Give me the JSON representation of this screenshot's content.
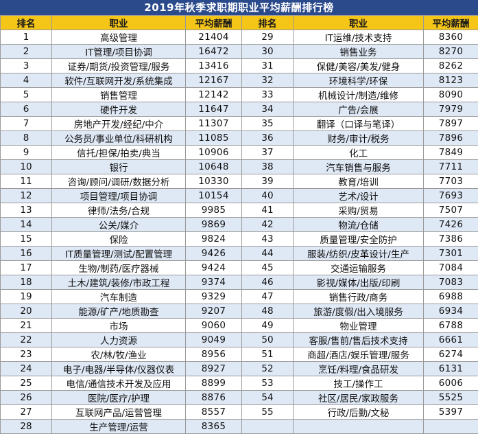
{
  "title": "2019年秋季求职期职业平均薪酬排行榜",
  "headers": {
    "rank": "排名",
    "job": "职业",
    "salary": "平均薪酬"
  },
  "left": [
    {
      "rank": "1",
      "job": "高级管理",
      "salary": "21404"
    },
    {
      "rank": "2",
      "job": "IT管理/项目协调",
      "salary": "16472"
    },
    {
      "rank": "3",
      "job": "证券/期货/投资管理/服务",
      "salary": "13416"
    },
    {
      "rank": "4",
      "job": "软件/互联网开发/系统集成",
      "salary": "12167"
    },
    {
      "rank": "5",
      "job": "销售管理",
      "salary": "12142"
    },
    {
      "rank": "6",
      "job": "硬件开发",
      "salary": "11647"
    },
    {
      "rank": "7",
      "job": "房地产开发/经纪/中介",
      "salary": "11307"
    },
    {
      "rank": "8",
      "job": "公务员/事业单位/科研机构",
      "salary": "11085"
    },
    {
      "rank": "9",
      "job": "信托/担保/拍卖/典当",
      "salary": "10906"
    },
    {
      "rank": "10",
      "job": "银行",
      "salary": "10648"
    },
    {
      "rank": "11",
      "job": "咨询/顾问/调研/数据分析",
      "salary": "10330"
    },
    {
      "rank": "12",
      "job": "项目管理/项目协调",
      "salary": "10154"
    },
    {
      "rank": "13",
      "job": "律师/法务/合规",
      "salary": "9985"
    },
    {
      "rank": "14",
      "job": "公关/媒介",
      "salary": "9869"
    },
    {
      "rank": "15",
      "job": "保险",
      "salary": "9824"
    },
    {
      "rank": "16",
      "job": "IT质量管理/测试/配置管理",
      "salary": "9426"
    },
    {
      "rank": "17",
      "job": "生物/制药/医疗器械",
      "salary": "9424"
    },
    {
      "rank": "18",
      "job": "土木/建筑/装修/市政工程",
      "salary": "9374"
    },
    {
      "rank": "19",
      "job": "汽车制造",
      "salary": "9329"
    },
    {
      "rank": "20",
      "job": "能源/矿产/地质勘查",
      "salary": "9207"
    },
    {
      "rank": "21",
      "job": "市场",
      "salary": "9060"
    },
    {
      "rank": "22",
      "job": "人力资源",
      "salary": "9049"
    },
    {
      "rank": "23",
      "job": "农/林/牧/渔业",
      "salary": "8956"
    },
    {
      "rank": "24",
      "job": "电子/电器/半导体/仪器仪表",
      "salary": "8927"
    },
    {
      "rank": "25",
      "job": "电信/通信技术开发及应用",
      "salary": "8899"
    },
    {
      "rank": "26",
      "job": "医院/医疗/护理",
      "salary": "8876"
    },
    {
      "rank": "27",
      "job": "互联网产品/运营管理",
      "salary": "8557"
    },
    {
      "rank": "28",
      "job": "生产管理/运营",
      "salary": "8365"
    }
  ],
  "right": [
    {
      "rank": "29",
      "job": "IT运维/技术支持",
      "salary": "8360"
    },
    {
      "rank": "30",
      "job": "销售业务",
      "salary": "8270"
    },
    {
      "rank": "31",
      "job": "保健/美容/美发/健身",
      "salary": "8262"
    },
    {
      "rank": "32",
      "job": "环境科学/环保",
      "salary": "8123"
    },
    {
      "rank": "33",
      "job": "机械设计/制造/维修",
      "salary": "8090"
    },
    {
      "rank": "34",
      "job": "广告/会展",
      "salary": "7979"
    },
    {
      "rank": "35",
      "job": "翻译（口译与笔译）",
      "salary": "7897"
    },
    {
      "rank": "36",
      "job": "财务/审计/税务",
      "salary": "7896"
    },
    {
      "rank": "37",
      "job": "化工",
      "salary": "7849"
    },
    {
      "rank": "38",
      "job": "汽车销售与服务",
      "salary": "7711"
    },
    {
      "rank": "39",
      "job": "教育/培训",
      "salary": "7703"
    },
    {
      "rank": "40",
      "job": "艺术/设计",
      "salary": "7693"
    },
    {
      "rank": "41",
      "job": "采购/贸易",
      "salary": "7507"
    },
    {
      "rank": "42",
      "job": "物流/仓储",
      "salary": "7426"
    },
    {
      "rank": "43",
      "job": "质量管理/安全防护",
      "salary": "7386"
    },
    {
      "rank": "44",
      "job": "服装/纺织/皮革设计/生产",
      "salary": "7301"
    },
    {
      "rank": "45",
      "job": "交通运输服务",
      "salary": "7084"
    },
    {
      "rank": "46",
      "job": "影视/媒体/出版/印刷",
      "salary": "7083"
    },
    {
      "rank": "47",
      "job": "销售行政/商务",
      "salary": "6988"
    },
    {
      "rank": "48",
      "job": "旅游/度假/出入境服务",
      "salary": "6934"
    },
    {
      "rank": "49",
      "job": "物业管理",
      "salary": "6788"
    },
    {
      "rank": "50",
      "job": "客服/售前/售后技术支持",
      "salary": "6661"
    },
    {
      "rank": "51",
      "job": "商超/酒店/娱乐管理/服务",
      "salary": "6274"
    },
    {
      "rank": "52",
      "job": "烹饪/料理/食品研发",
      "salary": "6131"
    },
    {
      "rank": "53",
      "job": "技工/操作工",
      "salary": "6006"
    },
    {
      "rank": "54",
      "job": "社区/居民/家政服务",
      "salary": "5525"
    },
    {
      "rank": "55",
      "job": "行政/后勤/文秘",
      "salary": "5397"
    },
    {
      "rank": "",
      "job": "",
      "salary": ""
    }
  ],
  "colors": {
    "title_bg": "#2b4a8c",
    "header_bg": "#f5c518",
    "stripe": "#dfe8f5"
  }
}
